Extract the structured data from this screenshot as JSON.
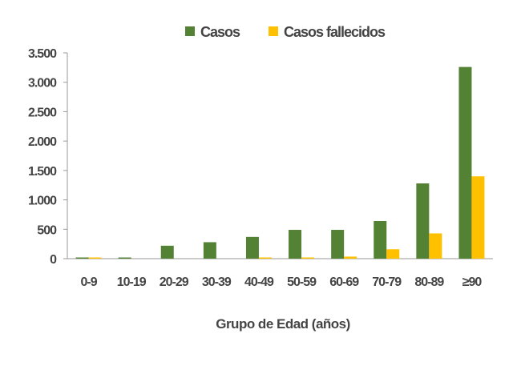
{
  "chart_data": {
    "type": "bar",
    "title": "",
    "xlabel": "Grupo de Edad (años)",
    "ylabel": "",
    "categories": [
      "0-9",
      "10-19",
      "20-29",
      "30-39",
      "40-49",
      "50-59",
      "60-69",
      "70-79",
      "80-89",
      "≥90"
    ],
    "series": [
      {
        "name": "Casos",
        "color": "#548235",
        "values": [
          10,
          15,
          220,
          280,
          370,
          490,
          490,
          640,
          1280,
          3260
        ]
      },
      {
        "name": "Casos fallecidos",
        "color": "#FFC000",
        "values": [
          5,
          0,
          0,
          0,
          15,
          15,
          35,
          160,
          430,
          1400
        ]
      }
    ],
    "y_tick_labels": [
      "0",
      "500",
      "1.000",
      "1.500",
      "2.000",
      "2.500",
      "3.000",
      "3.500"
    ],
    "y_tick_values": [
      0,
      500,
      1000,
      1500,
      2000,
      2500,
      3000,
      3500
    ],
    "ylim": [
      0,
      3500
    ],
    "grid": false,
    "legend_position": "top"
  }
}
